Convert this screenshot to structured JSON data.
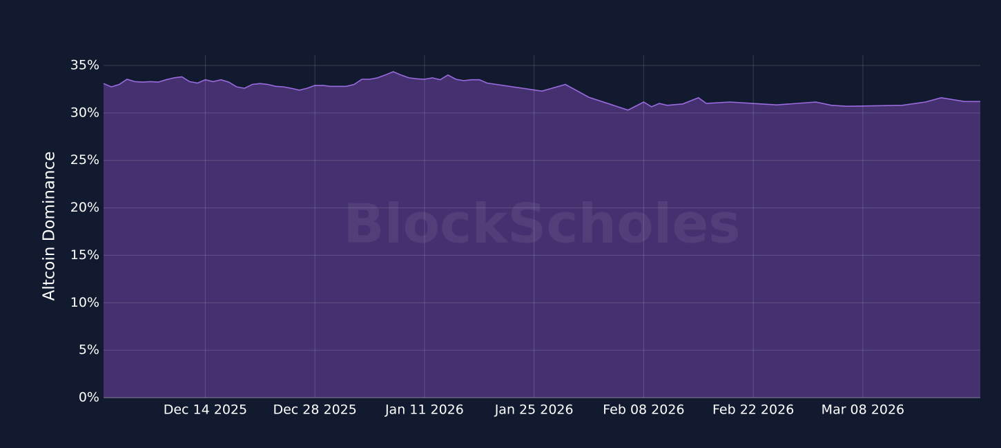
{
  "chart_data": {
    "type": "area",
    "y_label": "Altcoin Dominance",
    "watermark": "BlockScholes",
    "x": [
      "2025-12-01",
      "2025-12-02",
      "2025-12-03",
      "2025-12-04",
      "2025-12-05",
      "2025-12-06",
      "2025-12-07",
      "2025-12-08",
      "2025-12-09",
      "2025-12-10",
      "2025-12-11",
      "2025-12-12",
      "2025-12-13",
      "2025-12-14",
      "2025-12-15",
      "2025-12-16",
      "2025-12-17",
      "2025-12-18",
      "2025-12-19",
      "2025-12-20",
      "2025-12-21",
      "2025-12-22",
      "2025-12-23",
      "2025-12-24",
      "2025-12-25",
      "2025-12-26",
      "2025-12-27",
      "2025-12-28",
      "2025-12-29",
      "2025-12-30",
      "2025-12-31",
      "2026-01-01",
      "2026-01-02",
      "2026-01-03",
      "2026-01-04",
      "2026-01-05",
      "2026-01-06",
      "2026-01-07",
      "2026-01-08",
      "2026-01-09",
      "2026-01-10",
      "2026-01-11",
      "2026-01-12",
      "2026-01-13",
      "2026-01-14",
      "2026-01-15",
      "2026-01-16",
      "2026-01-17",
      "2026-01-18",
      "2026-01-19",
      "2026-01-26",
      "2026-01-29",
      "2026-02-01",
      "2026-02-06",
      "2026-02-08",
      "2026-02-09",
      "2026-02-10",
      "2026-02-11",
      "2026-02-13",
      "2026-02-15",
      "2026-02-16",
      "2026-02-19",
      "2026-02-23",
      "2026-02-25",
      "2026-03-02",
      "2026-03-04",
      "2026-03-06",
      "2026-03-13",
      "2026-03-16",
      "2026-03-18",
      "2026-03-21",
      "2026-03-23"
    ],
    "series": [
      {
        "name": "Altcoin Dominance",
        "color": "#9b6be0",
        "fill": "#45316f",
        "values": [
          33.1,
          32.75,
          33.0,
          33.55,
          33.3,
          33.25,
          33.3,
          33.25,
          33.5,
          33.7,
          33.8,
          33.3,
          33.15,
          33.5,
          33.3,
          33.5,
          33.25,
          32.75,
          32.6,
          33.0,
          33.1,
          33.0,
          32.8,
          32.75,
          32.6,
          32.4,
          32.6,
          32.9,
          32.9,
          32.8,
          32.8,
          32.8,
          33.0,
          33.55,
          33.55,
          33.7,
          34.0,
          34.35,
          34.0,
          33.7,
          33.6,
          33.55,
          33.7,
          33.5,
          34.0,
          33.55,
          33.4,
          33.5,
          33.5,
          33.15,
          32.3,
          33.0,
          31.65,
          30.3,
          31.15,
          30.65,
          31.0,
          30.8,
          30.95,
          31.6,
          31.0,
          31.15,
          30.95,
          30.85,
          31.15,
          30.8,
          30.7,
          30.8,
          31.15,
          31.6,
          31.2,
          31.2
        ]
      }
    ],
    "xlim": [
      "2025-12-01",
      "2026-03-23"
    ],
    "xticks": [
      {
        "value": "2025-12-14",
        "label": "Dec 14 2025"
      },
      {
        "value": "2025-12-28",
        "label": "Dec 28 2025"
      },
      {
        "value": "2026-01-11",
        "label": "Jan 11 2026"
      },
      {
        "value": "2026-01-25",
        "label": "Jan 25 2026"
      },
      {
        "value": "2026-02-08",
        "label": "Feb 08 2026"
      },
      {
        "value": "2026-02-22",
        "label": "Feb 22 2026"
      },
      {
        "value": "2026-03-08",
        "label": "Mar 08 2026"
      }
    ],
    "ylim": [
      0,
      35
    ],
    "yticks": [
      {
        "value": 0,
        "label": "0%"
      },
      {
        "value": 5,
        "label": "5%"
      },
      {
        "value": 10,
        "label": "10%"
      },
      {
        "value": 15,
        "label": "15%"
      },
      {
        "value": 20,
        "label": "20%"
      },
      {
        "value": 25,
        "label": "25%"
      },
      {
        "value": 30,
        "label": "30%"
      },
      {
        "value": 35,
        "label": "35%"
      }
    ],
    "grid": true
  }
}
